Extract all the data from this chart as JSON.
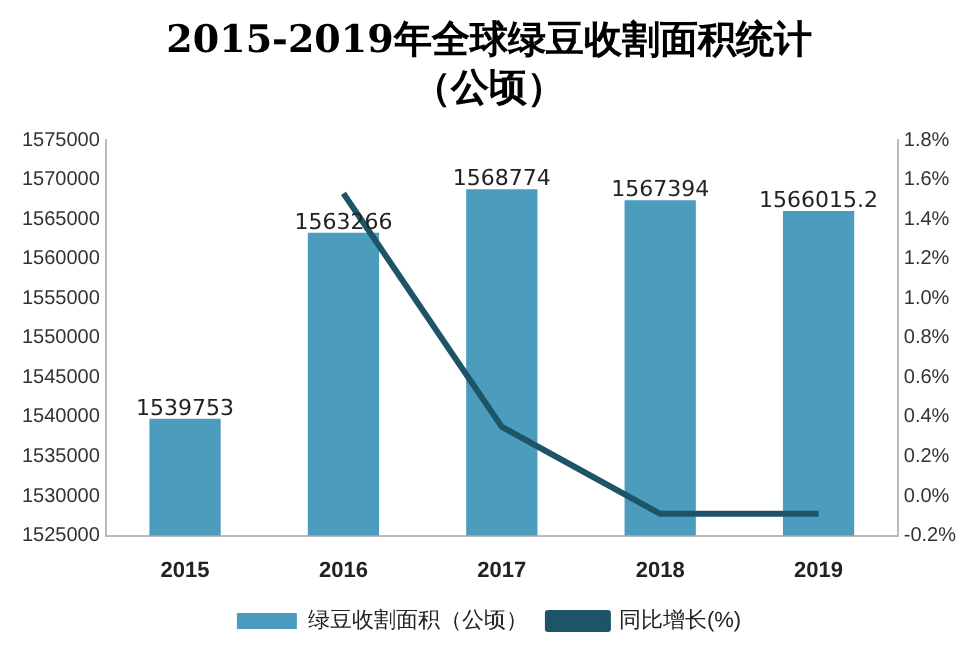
{
  "chart_data": {
    "type": "bar",
    "title": "2015-2019年全球绿豆收割面积统计（公顷）",
    "categories": [
      "2015",
      "2016",
      "2017",
      "2018",
      "2019"
    ],
    "series": [
      {
        "name": "绿豆收割面积（公顷）",
        "color": "#4b9cbd",
        "values": [
          1539753,
          1563266,
          1568774,
          1567394,
          1566015.2
        ],
        "value_labels": [
          "1539753",
          "1563266",
          "1568774",
          "1567394",
          "1566015.2"
        ]
      },
      {
        "name": "同比增长(%)",
        "type": "line",
        "axis": "y2",
        "color": "#1d5467",
        "values": [
          null,
          1.53,
          0.35,
          -0.09,
          -0.09
        ]
      }
    ],
    "ylim": [
      1525000,
      1575000
    ],
    "yticks": [
      1525000,
      1530000,
      1535000,
      1540000,
      1545000,
      1550000,
      1555000,
      1560000,
      1565000,
      1570000,
      1575000
    ],
    "y2lim": [
      -0.2,
      1.8
    ],
    "y2ticks": [
      {
        "value": -0.2,
        "label": "-0.2%"
      },
      {
        "value": 0,
        "label": "0.0%"
      },
      {
        "value": 0.2,
        "label": "0.2%"
      },
      {
        "value": 0.4,
        "label": "0.4%"
      },
      {
        "value": 0.6,
        "label": "0.6%"
      },
      {
        "value": 0.8,
        "label": "0.8%"
      },
      {
        "value": 1,
        "label": "1.0%"
      },
      {
        "value": 1.2,
        "label": "1.2%"
      },
      {
        "value": 1.4,
        "label": "1.4%"
      },
      {
        "value": 1.6,
        "label": "1.6%"
      },
      {
        "value": 1.8,
        "label": "1.8%"
      }
    ],
    "legend": "bottom",
    "marker": "none",
    "grid": false
  }
}
